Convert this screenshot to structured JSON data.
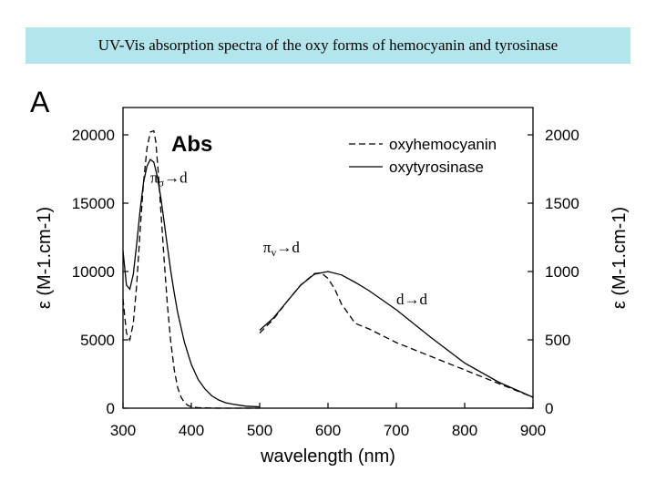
{
  "header": {
    "title": "UV-Vis absorption spectra of the oxy forms of hemocyanin and tyrosinase"
  },
  "chart_data": {
    "type": "line",
    "panel_label": "A",
    "plot_label": "Abs",
    "xlabel": "wavelength (nm)",
    "ylabel_left": "ε (M-1.cm-1)",
    "ylabel_right": "ε (M-1.cm-1)",
    "xlim": [
      300,
      900
    ],
    "ylim_left": [
      0,
      22000
    ],
    "ylim_right": [
      0,
      2200
    ],
    "x_ticks": [
      300,
      400,
      500,
      600,
      700,
      800,
      900
    ],
    "y_ticks_left": [
      0,
      5000,
      10000,
      15000,
      20000
    ],
    "y_ticks_right": [
      0,
      500,
      1000,
      1500,
      2000
    ],
    "grid": false,
    "legend_position": "top-right",
    "annotations": [
      {
        "text": "πσ→d",
        "main": "π",
        "sub": "σ",
        "tail": "→d",
        "x": 340,
        "y": 16500
      },
      {
        "text": "πv→d",
        "main": "π",
        "sub": "v",
        "tail": "→d",
        "x": 505,
        "y": 11400
      },
      {
        "text": "d→d",
        "main": "d→d",
        "sub": "",
        "tail": "",
        "x": 700,
        "y": 7600
      }
    ],
    "series": [
      {
        "name": "oxyhemocyanin",
        "dash": "dashed",
        "segments": [
          {
            "axis": "left",
            "x": [
              300,
              305,
              310,
              315,
              320,
              325,
              330,
              335,
              340,
              345,
              348,
              352,
              356,
              360,
              365,
              370,
              375,
              380,
              385,
              390,
              395,
              400,
              410,
              420,
              430,
              450,
              500
            ],
            "y": [
              8000,
              5500,
              5000,
              6200,
              9000,
              13000,
              16500,
              19000,
              20200,
              20300,
              19500,
              17000,
              14000,
              11000,
              7500,
              4800,
              2800,
              1500,
              800,
              400,
              200,
              100,
              40,
              20,
              10,
              0,
              0
            ]
          },
          {
            "axis": "right",
            "x": [
              500,
              520,
              540,
              560,
              580,
              590,
              600,
              610,
              620,
              640,
              660,
              700,
              750,
              800,
              850,
              900
            ],
            "y": [
              550,
              650,
              780,
              900,
              985,
              990,
              950,
              870,
              760,
              620,
              580,
              480,
              380,
              280,
              180,
              80
            ]
          }
        ]
      },
      {
        "name": "oxytyrosinase",
        "dash": "solid",
        "segments": [
          {
            "axis": "left",
            "x": [
              300,
              305,
              310,
              315,
              320,
              325,
              330,
              335,
              340,
              345,
              350,
              355,
              360,
              365,
              370,
              375,
              380,
              390,
              400,
              410,
              420,
              430,
              440,
              450,
              460,
              480,
              500
            ],
            "y": [
              11500,
              9000,
              8700,
              9800,
              12000,
              14500,
              16500,
              17700,
              18200,
              18000,
              17000,
              15500,
              13700,
              11800,
              10000,
              8400,
              7000,
              4800,
              3200,
              2100,
              1400,
              900,
              600,
              400,
              300,
              150,
              100
            ]
          },
          {
            "axis": "right",
            "x": [
              500,
              520,
              540,
              560,
              580,
              600,
              620,
              640,
              660,
              700,
              750,
              800,
              850,
              900
            ],
            "y": [
              570,
              660,
              780,
              900,
              980,
              1000,
              975,
              920,
              860,
              720,
              520,
              330,
              190,
              80
            ]
          }
        ]
      }
    ]
  }
}
